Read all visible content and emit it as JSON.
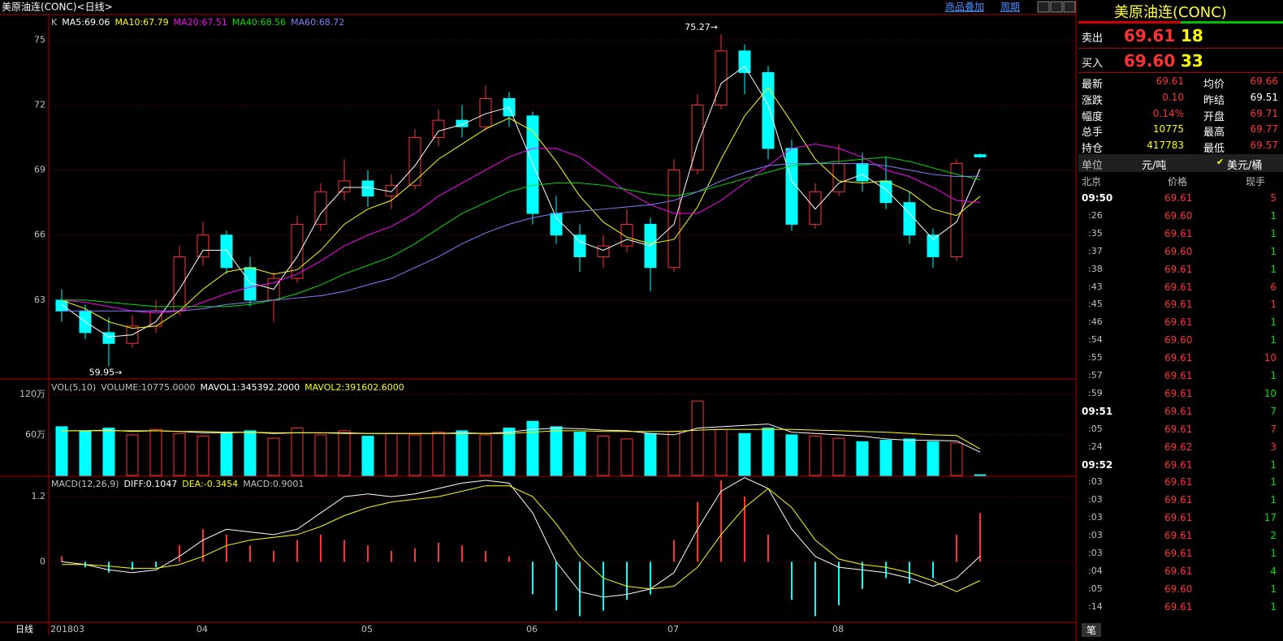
{
  "header": {
    "title": "美原油连(CONC)<日线>",
    "overlay": "商品叠加",
    "period": "周期",
    "bottom_label": "日线",
    "tab": "笔"
  },
  "chart_data": [
    {
      "type": "candlestick",
      "indicator": "K",
      "categories": [
        "201803",
        null,
        null,
        null,
        null,
        null,
        "04",
        null,
        null,
        null,
        null,
        null,
        null,
        "05",
        null,
        null,
        null,
        null,
        null,
        null,
        "06",
        null,
        null,
        null,
        null,
        null,
        "07",
        null,
        null,
        null,
        null,
        null,
        null,
        "08",
        null,
        null,
        null,
        null,
        null,
        null
      ],
      "candles": [
        [
          63.0,
          63.5,
          62.0,
          62.5
        ],
        [
          62.5,
          62.8,
          61.2,
          61.5
        ],
        [
          61.5,
          62.2,
          59.95,
          61.0
        ],
        [
          61.0,
          62.3,
          60.8,
          61.8
        ],
        [
          61.8,
          63.0,
          61.5,
          62.5
        ],
        [
          62.5,
          65.5,
          62.3,
          65.0
        ],
        [
          65.0,
          66.6,
          64.6,
          66.0
        ],
        [
          66.0,
          66.2,
          64.2,
          64.5
        ],
        [
          64.5,
          65.0,
          62.7,
          63.0
        ],
        [
          63.0,
          64.3,
          62.0,
          64.0
        ],
        [
          64.0,
          66.9,
          63.8,
          66.5
        ],
        [
          66.5,
          68.4,
          66.2,
          68.0
        ],
        [
          68.0,
          69.5,
          67.6,
          68.5
        ],
        [
          68.5,
          69.0,
          67.3,
          67.8
        ],
        [
          67.8,
          68.8,
          67.2,
          68.3
        ],
        [
          68.3,
          70.9,
          68.1,
          70.5
        ],
        [
          70.5,
          71.8,
          70.1,
          71.3
        ],
        [
          71.3,
          72.0,
          70.5,
          71.0
        ],
        [
          71.0,
          72.9,
          70.8,
          72.3
        ],
        [
          72.3,
          72.6,
          71.0,
          71.5
        ],
        [
          71.5,
          71.7,
          66.5,
          67.0
        ],
        [
          67.0,
          67.8,
          65.6,
          66.0
        ],
        [
          66.0,
          66.5,
          64.3,
          65.0
        ],
        [
          65.0,
          66.0,
          64.5,
          65.5
        ],
        [
          65.5,
          67.2,
          65.2,
          66.5
        ],
        [
          66.5,
          66.8,
          63.4,
          64.5
        ],
        [
          64.5,
          69.5,
          64.3,
          69.0
        ],
        [
          69.0,
          72.5,
          68.8,
          72.0
        ],
        [
          72.0,
          75.27,
          71.8,
          74.5
        ],
        [
          74.5,
          74.8,
          72.5,
          73.5
        ],
        [
          73.5,
          73.8,
          69.5,
          70.0
        ],
        [
          70.0,
          70.4,
          66.2,
          66.5
        ],
        [
          66.5,
          68.4,
          66.3,
          68.0
        ],
        [
          68.0,
          70.2,
          67.8,
          69.3
        ],
        [
          69.3,
          69.8,
          68.0,
          68.5
        ],
        [
          68.5,
          69.6,
          67.2,
          67.5
        ],
        [
          67.5,
          68.0,
          65.6,
          66.0
        ],
        [
          66.0,
          66.3,
          64.5,
          65.0
        ],
        [
          65.0,
          69.5,
          64.8,
          69.3
        ],
        [
          69.71,
          69.77,
          69.57,
          69.61
        ]
      ],
      "up_color": "#ff3232",
      "down_color": "#00ffff",
      "series": [
        {
          "name": "MA5:69.06",
          "color": "#ffffff",
          "values": [
            62.8,
            62.0,
            61.3,
            61.4,
            62.0,
            63.5,
            65.3,
            65.3,
            63.8,
            63.5,
            65.0,
            67.0,
            68.2,
            68.2,
            68.0,
            69.2,
            70.8,
            71.1,
            71.6,
            71.9,
            69.3,
            66.8,
            65.7,
            65.3,
            65.8,
            65.5,
            66.5,
            70.2,
            73.0,
            73.8,
            72.0,
            68.5,
            67.2,
            68.4,
            68.8,
            68.1,
            67.0,
            65.8,
            66.6,
            69.06
          ]
        },
        {
          "name": "MA10:67.79",
          "color": "#ffff00",
          "values": [
            63.0,
            62.6,
            62.0,
            61.7,
            61.8,
            62.5,
            63.5,
            64.3,
            64.5,
            64.2,
            64.4,
            65.3,
            66.5,
            67.2,
            67.6,
            68.5,
            69.5,
            70.2,
            70.9,
            71.4,
            70.8,
            69.4,
            67.8,
            66.6,
            65.9,
            65.6,
            65.8,
            67.3,
            69.5,
            71.5,
            72.8,
            71.2,
            69.5,
            68.5,
            68.4,
            68.5,
            68.0,
            67.2,
            66.9,
            67.79
          ]
        },
        {
          "name": "MA20:67.51",
          "color": "#ff00ff",
          "values": [
            63.0,
            62.9,
            62.7,
            62.5,
            62.4,
            62.5,
            62.9,
            63.3,
            63.6,
            63.8,
            64.2,
            64.8,
            65.5,
            66.0,
            66.4,
            67.0,
            67.8,
            68.4,
            69.0,
            69.6,
            70.0,
            70.0,
            69.6,
            68.8,
            68.0,
            67.4,
            67.0,
            67.0,
            67.6,
            68.4,
            69.2,
            70.0,
            70.2,
            70.0,
            69.6,
            69.0,
            68.7,
            68.2,
            67.6,
            67.51
          ]
        },
        {
          "name": "MA40:68.56",
          "color": "#00e000",
          "values": [
            63.0,
            63.0,
            62.9,
            62.8,
            62.7,
            62.7,
            62.7,
            62.7,
            62.8,
            63.0,
            63.3,
            63.7,
            64.2,
            64.6,
            65.0,
            65.6,
            66.3,
            67.0,
            67.5,
            68.0,
            68.3,
            68.4,
            68.4,
            68.3,
            68.1,
            67.9,
            67.8,
            68.0,
            68.3,
            68.6,
            68.9,
            69.2,
            69.3,
            69.4,
            69.5,
            69.6,
            69.4,
            69.1,
            68.8,
            68.56
          ]
        },
        {
          "name": "MA60:68.72",
          "color": "#8080ff",
          "values": [
            62.5,
            62.5,
            62.5,
            62.5,
            62.5,
            62.5,
            62.6,
            62.8,
            62.9,
            63.0,
            63.1,
            63.2,
            63.4,
            63.7,
            64.0,
            64.5,
            65.0,
            65.6,
            66.1,
            66.5,
            66.8,
            67.0,
            67.1,
            67.2,
            67.3,
            67.4,
            67.6,
            68.0,
            68.5,
            68.9,
            69.2,
            69.3,
            69.3,
            69.3,
            69.3,
            69.2,
            69.0,
            68.8,
            68.7,
            68.72
          ]
        }
      ],
      "annotations": [
        "75.27→",
        "59.95→"
      ],
      "ylim": [
        59.4,
        76.1
      ],
      "yticks": [
        63,
        66,
        69,
        72,
        75
      ],
      "grid": true
    },
    {
      "type": "bar",
      "indicator": "VOL(5,10)",
      "volume_label": "VOLUME:10775.0000",
      "values": [
        72,
        65,
        70,
        60,
        68,
        62,
        58,
        64,
        66,
        55,
        70,
        60,
        66,
        58,
        62,
        60,
        64,
        66,
        60,
        70,
        80,
        72,
        64,
        58,
        54,
        62,
        65,
        110,
        68,
        62,
        70,
        60,
        58,
        55,
        50,
        52,
        54,
        50,
        48,
        1.08
      ],
      "series": [
        {
          "name": "MAVOL1:345392.2000",
          "color": "#ffffff",
          "values": [
            66,
            66,
            67,
            65,
            66,
            65,
            63,
            63,
            64,
            62,
            63,
            63,
            63,
            62,
            62,
            62,
            62,
            63,
            62,
            64,
            68,
            70,
            69,
            67,
            66,
            62,
            60,
            70,
            72,
            74,
            76,
            64,
            62,
            60,
            58,
            54,
            52,
            52,
            51,
            34.5
          ]
        },
        {
          "name": "MAVOL2:391602.6000",
          "color": "#ffff00",
          "values": [
            66,
            66,
            66,
            66,
            66,
            65,
            65,
            64,
            64,
            63,
            63,
            63,
            62,
            62,
            62,
            62,
            62,
            62,
            62,
            62,
            64,
            66,
            66,
            65,
            65,
            65,
            65,
            67,
            68,
            68,
            68,
            68,
            67,
            66,
            65,
            64,
            62,
            60,
            59,
            39.2
          ]
        }
      ],
      "ylim": [
        0,
        139
      ],
      "yticks": [
        {
          "value": 60,
          "label": "60万"
        },
        {
          "value": 120,
          "label": "120万"
        }
      ]
    },
    {
      "type": "macd",
      "indicator": "MACD(12,26,9)",
      "values": [
        0.1,
        -0.1,
        -0.2,
        -0.15,
        -0.1,
        0.3,
        0.6,
        0.5,
        0.3,
        0.2,
        0.4,
        0.5,
        0.4,
        0.3,
        0.2,
        0.25,
        0.35,
        0.3,
        0.2,
        0.1,
        -0.6,
        -0.9,
        -1.0,
        -0.9,
        -0.7,
        -0.6,
        0.4,
        1.1,
        1.5,
        1.2,
        0.5,
        -0.7,
        -1.0,
        -0.8,
        -0.5,
        -0.3,
        -0.4,
        -0.3,
        0.5,
        0.9001
      ],
      "value_name": "MACD:0.9001",
      "series": [
        {
          "name": "DIFF:0.1047",
          "color": "#ffffff",
          "values": [
            0.0,
            -0.05,
            -0.15,
            -0.2,
            -0.15,
            0.1,
            0.4,
            0.6,
            0.55,
            0.5,
            0.6,
            0.9,
            1.2,
            1.25,
            1.2,
            1.25,
            1.35,
            1.45,
            1.5,
            1.45,
            0.9,
            0.0,
            -0.55,
            -0.65,
            -0.6,
            -0.5,
            -0.2,
            0.6,
            1.3,
            1.55,
            1.35,
            0.6,
            0.1,
            -0.1,
            -0.15,
            -0.2,
            -0.3,
            -0.45,
            -0.3,
            0.1047
          ]
        },
        {
          "name": "DEA:-0.3454",
          "color": "#ffff00",
          "values": [
            -0.05,
            -0.05,
            -0.08,
            -0.12,
            -0.12,
            -0.05,
            0.1,
            0.3,
            0.4,
            0.45,
            0.5,
            0.65,
            0.85,
            1.0,
            1.1,
            1.15,
            1.2,
            1.3,
            1.4,
            1.4,
            1.2,
            0.7,
            0.1,
            -0.3,
            -0.45,
            -0.5,
            -0.45,
            -0.1,
            0.5,
            1.0,
            1.35,
            1.0,
            0.4,
            0.05,
            -0.05,
            -0.1,
            -0.2,
            -0.35,
            -0.55,
            -0.3454
          ]
        }
      ],
      "ylim": [
        -1.1,
        1.53
      ],
      "yticks": [
        0,
        1.2
      ]
    }
  ],
  "quote": {
    "name": "美原油连(CONC)",
    "ask_label": "卖出",
    "ask_price": "69.61",
    "ask_size": "18",
    "bid_label": "买入",
    "bid_price": "69.60",
    "bid_size": "33",
    "stats": [
      [
        "最新",
        "69.61",
        "均价",
        "69.66"
      ],
      [
        "涨跌",
        "0.10",
        "昨结",
        "69.51"
      ],
      [
        "幅度",
        "0.14%",
        "开盘",
        "69.71"
      ],
      [
        "总手",
        "10775",
        "最高",
        "69.77"
      ],
      [
        "持仓",
        "417783",
        "最低",
        "69.57"
      ]
    ],
    "unit_label": "单位",
    "unit_a": "元/吨",
    "unit_b": "美元/桶",
    "check": "✔",
    "columns": [
      "北京",
      "价格",
      "现手"
    ],
    "ticks": [
      {
        "time": "09:50",
        "price": "69.61",
        "volume": "5",
        "color": "#ff3232"
      },
      {
        "time": ":26",
        "price": "69.60",
        "volume": "1",
        "color": "#00e000"
      },
      {
        "time": ":35",
        "price": "69.61",
        "volume": "1",
        "color": "#00e000"
      },
      {
        "time": ":37",
        "price": "69.60",
        "volume": "1",
        "color": "#00e000"
      },
      {
        "time": ":38",
        "price": "69.61",
        "volume": "1",
        "color": "#00e000"
      },
      {
        "time": ":43",
        "price": "69.61",
        "volume": "6",
        "color": "#ff3232"
      },
      {
        "time": ":45",
        "price": "69.61",
        "volume": "1",
        "color": "#ff3232"
      },
      {
        "time": ":46",
        "price": "69.61",
        "volume": "1",
        "color": "#00e000"
      },
      {
        "time": ":54",
        "price": "69.60",
        "volume": "1",
        "color": "#00e000"
      },
      {
        "time": ":55",
        "price": "69.61",
        "volume": "10",
        "color": "#ff3232"
      },
      {
        "time": ":57",
        "price": "69.61",
        "volume": "1",
        "color": "#00e000"
      },
      {
        "time": ":59",
        "price": "69.61",
        "volume": "10",
        "color": "#00e000"
      },
      {
        "time": "09:51",
        "price": "69.61",
        "volume": "7",
        "color": "#00e000"
      },
      {
        "time": ":05",
        "price": "69.61",
        "volume": "7",
        "color": "#ff3232"
      },
      {
        "time": ":24",
        "price": "69.62",
        "volume": "3",
        "color": "#ff3232"
      },
      {
        "time": "09:52",
        "price": "69.61",
        "volume": "1",
        "color": "#00e000"
      },
      {
        "time": ":03",
        "price": "69.61",
        "volume": "1",
        "color": "#00e000"
      },
      {
        "time": ":03",
        "price": "69.61",
        "volume": "1",
        "color": "#00e000"
      },
      {
        "time": ":03",
        "price": "69.61",
        "volume": "17",
        "color": "#00e000"
      },
      {
        "time": ":03",
        "price": "69.61",
        "volume": "2",
        "color": "#00e000"
      },
      {
        "time": ":03",
        "price": "69.61",
        "volume": "1",
        "color": "#00e000"
      },
      {
        "time": ":04",
        "price": "69.61",
        "volume": "4",
        "color": "#00e000"
      },
      {
        "time": ":05",
        "price": "69.60",
        "volume": "1",
        "color": "#00e000"
      },
      {
        "time": ":14",
        "price": "69.61",
        "volume": "1",
        "color": "#00e000"
      }
    ]
  }
}
